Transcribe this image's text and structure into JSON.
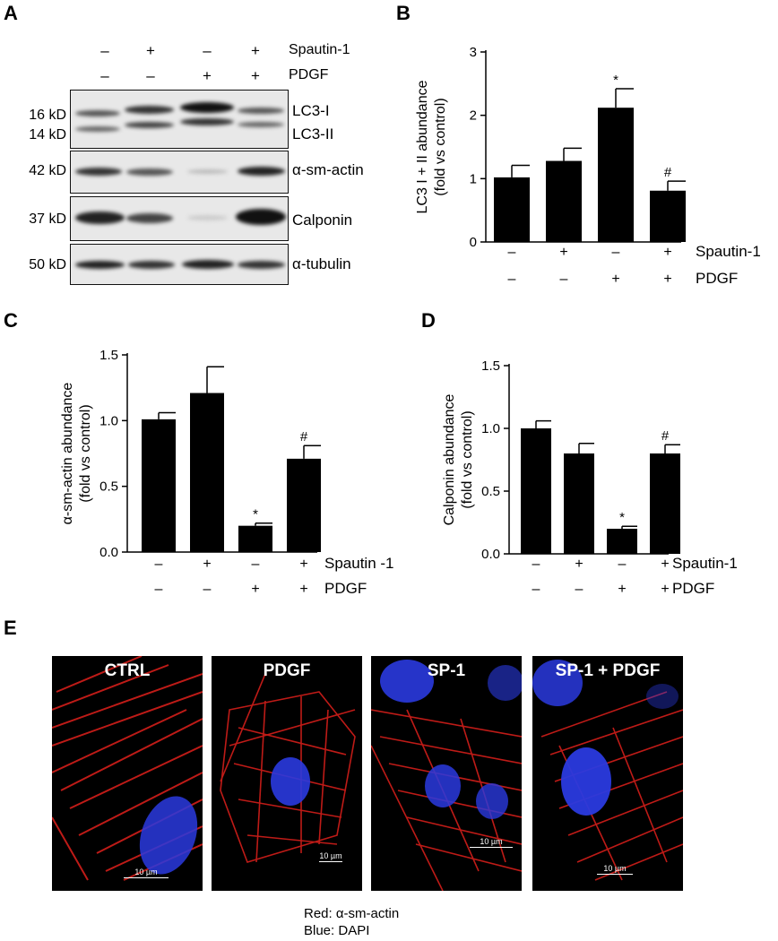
{
  "panel_labels": {
    "a": "A",
    "b": "B",
    "c": "C",
    "d": "D",
    "e": "E"
  },
  "treatments": {
    "row1_label": "Spautin-1",
    "row2_label": "PDGF",
    "row1": [
      "–",
      "+",
      "–",
      "+"
    ],
    "row2": [
      "–",
      "–",
      "+",
      "+"
    ]
  },
  "western_blot": {
    "blots": [
      {
        "kd": [
          "16 kD",
          "14 kD"
        ],
        "labels": [
          "LC3-I",
          "LC3-II"
        ]
      },
      {
        "kd": [
          "42 kD"
        ],
        "labels": [
          "α-sm-actin"
        ]
      },
      {
        "kd": [
          "37 kD"
        ],
        "labels": [
          "Calponin"
        ]
      },
      {
        "kd": [
          "50 kD"
        ],
        "labels": [
          "α-tubulin"
        ]
      }
    ]
  },
  "chart_data": [
    {
      "id": "B",
      "type": "bar",
      "categories": [
        "1",
        "2",
        "3",
        "4"
      ],
      "values": [
        1.02,
        1.28,
        2.12,
        0.81
      ],
      "errors": [
        0.19,
        0.2,
        0.3,
        0.15
      ],
      "annotations": [
        "",
        "",
        "*",
        "#"
      ],
      "ylabel_lines": [
        "LC3 I + II abundance",
        "(fold vs control)"
      ],
      "ylim": [
        0,
        3
      ],
      "yticks": [
        0,
        1,
        2,
        3
      ],
      "tick_labels": [
        "0",
        "1",
        "2",
        "3"
      ],
      "row1_label": "Spautin-1",
      "row2_label": "PDGF",
      "row1": [
        "–",
        "+",
        "–",
        "+"
      ],
      "row2": [
        "–",
        "–",
        "+",
        "+"
      ]
    },
    {
      "id": "C",
      "type": "bar",
      "categories": [
        "1",
        "2",
        "3",
        "4"
      ],
      "values": [
        1.01,
        1.21,
        0.2,
        0.71
      ],
      "errors": [
        0.05,
        0.2,
        0.02,
        0.1
      ],
      "annotations": [
        "",
        "",
        "*",
        "#"
      ],
      "ylabel_lines": [
        "α-sm-actin abundance",
        "(fold vs control)"
      ],
      "ylim": [
        0,
        1.5
      ],
      "yticks": [
        0,
        0.5,
        1.0,
        1.5
      ],
      "tick_labels": [
        "0.0",
        "0.5",
        "1.0",
        "1.5"
      ],
      "row1_label": "Spautin -1",
      "row2_label": "PDGF",
      "row1": [
        "–",
        "+",
        "–",
        "+"
      ],
      "row2": [
        "–",
        "–",
        "+",
        "+"
      ]
    },
    {
      "id": "D",
      "type": "bar",
      "categories": [
        "1",
        "2",
        "3",
        "4"
      ],
      "values": [
        1.0,
        0.8,
        0.2,
        0.8
      ],
      "errors": [
        0.06,
        0.08,
        0.02,
        0.07
      ],
      "annotations": [
        "",
        "",
        "*",
        "#"
      ],
      "ylabel_lines": [
        "Calponin abundance",
        "(fold vs control)"
      ],
      "ylim": [
        0,
        1.5
      ],
      "yticks": [
        0,
        0.5,
        1.0,
        1.5
      ],
      "tick_labels": [
        "0.0",
        "0.5",
        "1.0",
        "1.5"
      ],
      "row1_label": "Spautin-1",
      "row2_label": "PDGF",
      "row1": [
        "–",
        "+",
        "–",
        "+"
      ],
      "row2": [
        "–",
        "–",
        "+",
        "+"
      ]
    }
  ],
  "micrographs": [
    {
      "title": "CTRL",
      "scale": "10 µm"
    },
    {
      "title": "PDGF",
      "scale": "10 µm"
    },
    {
      "title": "SP-1",
      "scale": "10 µm"
    },
    {
      "title": "SP-1 + PDGF",
      "scale": "10 µm"
    }
  ],
  "legend": {
    "red": "Red: α-sm-actin",
    "blue": "Blue: DAPI"
  },
  "colors": {
    "bar": "#000000",
    "red_stain": "#e0201c",
    "blue_stain": "#2a3adf"
  }
}
